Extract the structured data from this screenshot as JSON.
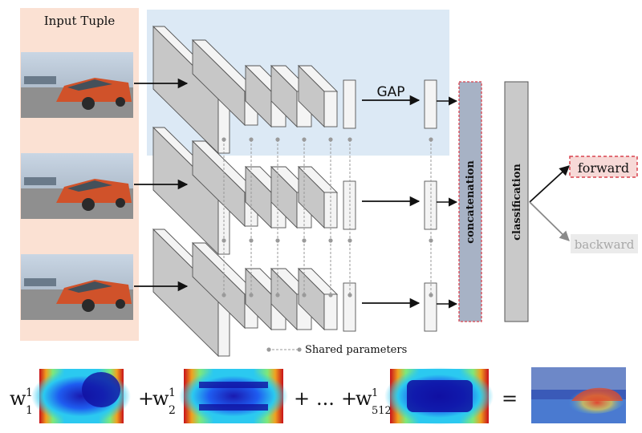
{
  "input_panel": {
    "title": "Input Tuple",
    "frames": 3
  },
  "labels": {
    "gap": "GAP",
    "concatenation": "concatenation",
    "classification": "classification",
    "shared_parameters": "Shared parameters"
  },
  "outputs": [
    {
      "label": "forward",
      "highlighted": true
    },
    {
      "label": "backward",
      "highlighted": false
    }
  ],
  "equation": {
    "w": "w",
    "terms": [
      {
        "sup": "1",
        "sub": "1"
      },
      {
        "sup": "1",
        "sub": "2"
      },
      {
        "sup": "1",
        "sub": "512"
      }
    ],
    "plus": "+",
    "ellipsis": "...",
    "equals": "="
  },
  "colors": {
    "input_panel_bg": "#fbe1d3",
    "shared_region_bg": "#dce9f5",
    "block_front": "#c7c7c7",
    "block_top": "#f4f4f4",
    "concat_fill": "#a7b2c5",
    "concat_border": "#d9434f",
    "classification_fill": "#c9c9c9",
    "forward_highlight": "#f7d9d7",
    "forward_border": "#d9434f",
    "backward_text": "#a8a8a8"
  }
}
